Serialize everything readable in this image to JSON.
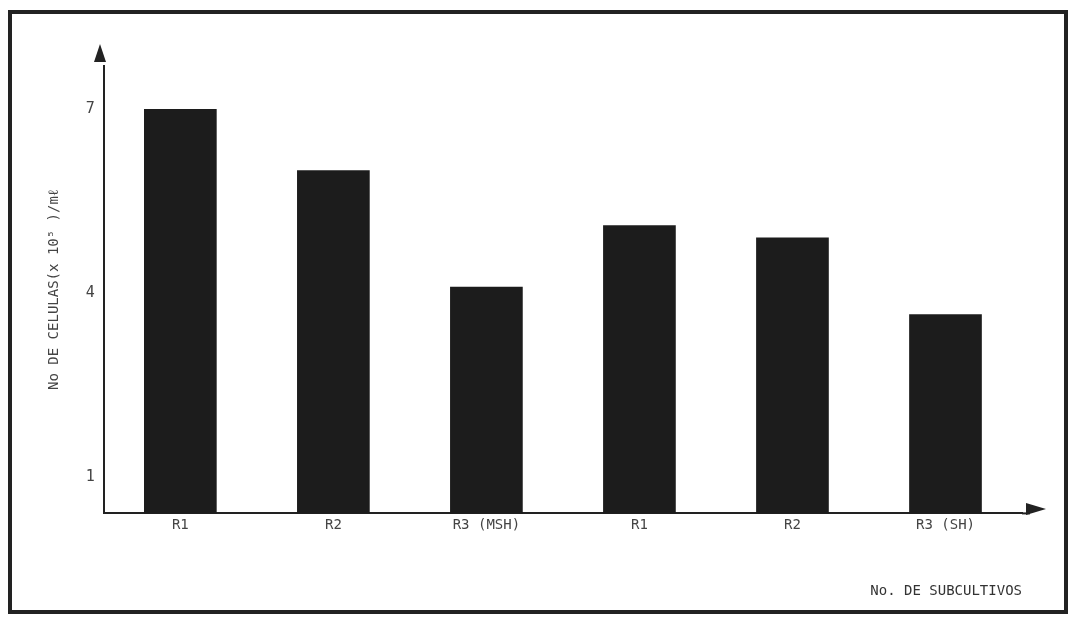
{
  "chart_data": {
    "type": "bar",
    "xlabel": "No. DE SUBCULTIVOS",
    "ylabel": "No DE CELULAS(x 10⁵ )/mℓ",
    "categories": [
      "R1",
      "R2",
      "R3 (MSH)",
      "R1",
      "R2",
      "R3 (SH)"
    ],
    "values": [
      7.0,
      6.0,
      4.1,
      5.1,
      4.9,
      3.65
    ],
    "color": "#1c1c1c",
    "ylim": [
      0.4,
      7.7
    ],
    "yticks": [
      1,
      4,
      7
    ],
    "grid": false,
    "legend": false
  }
}
